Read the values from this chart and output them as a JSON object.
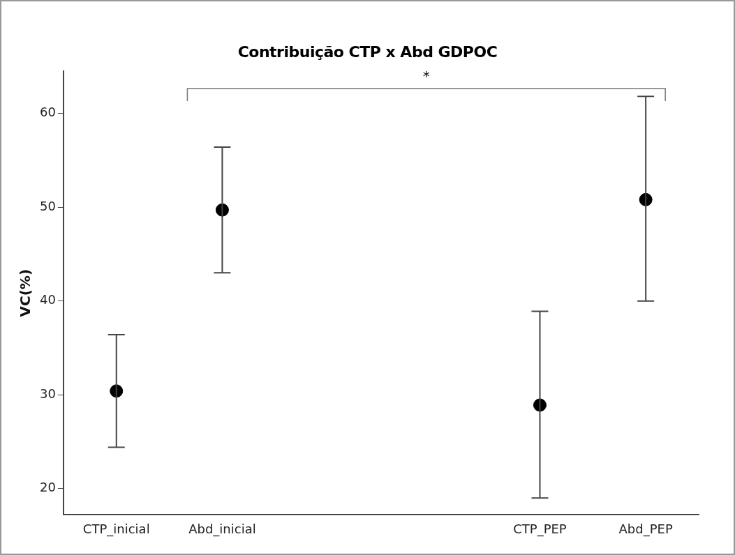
{
  "chart_data": {
    "type": "scatter",
    "title": "Contribuição CTP x Abd  GDPOC",
    "ylabel": "VC(%)",
    "categories": [
      "CTP_inicial",
      "Abd_inicial",
      null,
      null,
      "CTP_PEP",
      "Abd_PEP"
    ],
    "series": [
      {
        "color": "#000000",
        "values": [
          30.4,
          49.7,
          null,
          null,
          28.9,
          50.8
        ],
        "errors": [
          [
            24.4,
            36.4
          ],
          [
            43.0,
            56.4
          ],
          null,
          null,
          [
            19.0,
            38.9
          ],
          [
            40.0,
            61.8
          ]
        ]
      }
    ],
    "ylim": [
      17.2,
      64.5
    ],
    "yticks": [
      20,
      30,
      40,
      50,
      60
    ],
    "grid": false,
    "legend": false,
    "marker": "circle",
    "annotations": [
      "*"
    ]
  }
}
